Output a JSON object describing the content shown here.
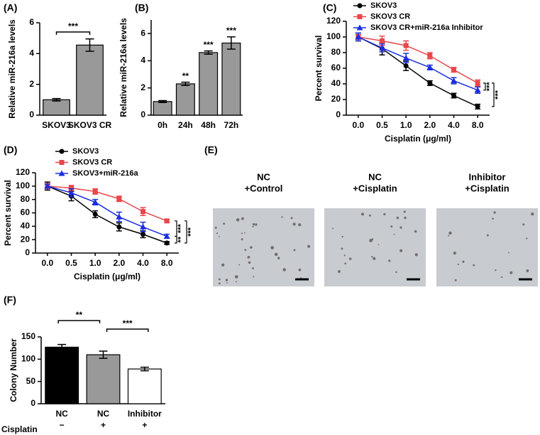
{
  "chart_data": [
    {
      "type": "bar",
      "panel": "(A)",
      "ylabel": "Relative miR-216a levels",
      "categories": [
        "SKOV3",
        "SKOV3 CR"
      ],
      "values": [
        1.0,
        4.55
      ],
      "errors": [
        0.08,
        0.4
      ],
      "color": "#999999",
      "ylim": [
        0,
        6
      ],
      "yticks": [
        0,
        2,
        4,
        6
      ],
      "annotations": [
        "***"
      ]
    },
    {
      "type": "bar",
      "panel": "(B)",
      "ylabel": "Relative miR-216a levels",
      "categories": [
        "0h",
        "24h",
        "48h",
        "72h"
      ],
      "values": [
        1.0,
        2.3,
        4.6,
        5.3
      ],
      "errors": [
        0.07,
        0.12,
        0.12,
        0.45
      ],
      "color": "#999999",
      "ylim": [
        0,
        7
      ],
      "yticks": [
        0,
        2,
        4,
        6
      ],
      "significance": [
        null,
        "**",
        "***",
        "***"
      ]
    },
    {
      "type": "line",
      "panel": "(C)",
      "xlabel": "Cisplatin (μg/ml)",
      "ylabel": "Percent survival",
      "categories": [
        "0.0",
        "0.5",
        "1.0",
        "2.0",
        "4.0",
        "8.0"
      ],
      "ylim": [
        0,
        120
      ],
      "yticks": [
        0,
        20,
        40,
        60,
        80,
        100,
        120
      ],
      "series": [
        {
          "name": "SKOV3",
          "color": "#000000",
          "marker": "circle",
          "values": [
            100,
            85,
            63,
            41,
            25,
            11
          ],
          "errors": [
            5,
            8,
            6,
            3,
            3,
            3
          ]
        },
        {
          "name": "SKOV3 CR",
          "color": "#e8474b",
          "marker": "square",
          "values": [
            100,
            95,
            89,
            76,
            58,
            41
          ],
          "errors": [
            3,
            6,
            6,
            4,
            3,
            4
          ]
        },
        {
          "name": "SKOV3 CR+miR-216a Inhibitor",
          "color": "#1a2ee0",
          "marker": "triangle",
          "values": [
            100,
            86,
            73,
            61,
            44,
            32
          ],
          "errors": [
            5,
            5,
            6,
            3,
            4,
            4
          ]
        }
      ],
      "annotations": [
        "***",
        "***"
      ]
    },
    {
      "type": "line",
      "panel": "(D)",
      "xlabel": "Cisplatin (μg/ml)",
      "ylabel": "Percent survival",
      "categories": [
        "0.0",
        "0.5",
        "1.0",
        "2.0",
        "4.0",
        "8.0"
      ],
      "ylim": [
        0,
        120
      ],
      "yticks": [
        0,
        20,
        40,
        60,
        80,
        100,
        120
      ],
      "series": [
        {
          "name": "SKOV3",
          "color": "#000000",
          "marker": "circle",
          "values": [
            100,
            85,
            58,
            39,
            28,
            15
          ],
          "errors": [
            6,
            7,
            5,
            6,
            5,
            2
          ]
        },
        {
          "name": "SKOV3 CR",
          "color": "#e8474b",
          "marker": "square",
          "values": [
            100,
            97,
            92,
            81,
            62,
            48
          ],
          "errors": [
            4,
            4,
            4,
            4,
            6,
            2
          ]
        },
        {
          "name": "SKOV3+miR-216a",
          "color": "#1a2ee0",
          "marker": "triangle",
          "values": [
            100,
            90,
            76,
            54,
            39,
            25
          ],
          "errors": [
            3,
            6,
            4,
            7,
            7,
            3
          ]
        }
      ],
      "annotations": [
        "**",
        "***",
        "***"
      ]
    },
    {
      "type": "bar",
      "panel": "(F)",
      "ylabel": "Colony Number",
      "categories": [
        "NC",
        "NC",
        "Inhibitor"
      ],
      "values": [
        127,
        110,
        78
      ],
      "errors": [
        6,
        8,
        4
      ],
      "colors": [
        "#000000",
        "#999999",
        "#ffffff"
      ],
      "ylim": [
        0,
        150
      ],
      "yticks": [
        0,
        50,
        100,
        150
      ],
      "row_label": "Cisplatin",
      "row_values": [
        "−",
        "+",
        "+"
      ],
      "annotations": [
        "**",
        "***"
      ]
    }
  ],
  "images_panel": {
    "panel": "(E)",
    "images": [
      {
        "title": [
          "NC",
          "+Control"
        ]
      },
      {
        "title": [
          "NC",
          "+Cisplatin"
        ]
      },
      {
        "title": [
          "Inhibitor",
          "+Cisplatin"
        ]
      }
    ]
  }
}
